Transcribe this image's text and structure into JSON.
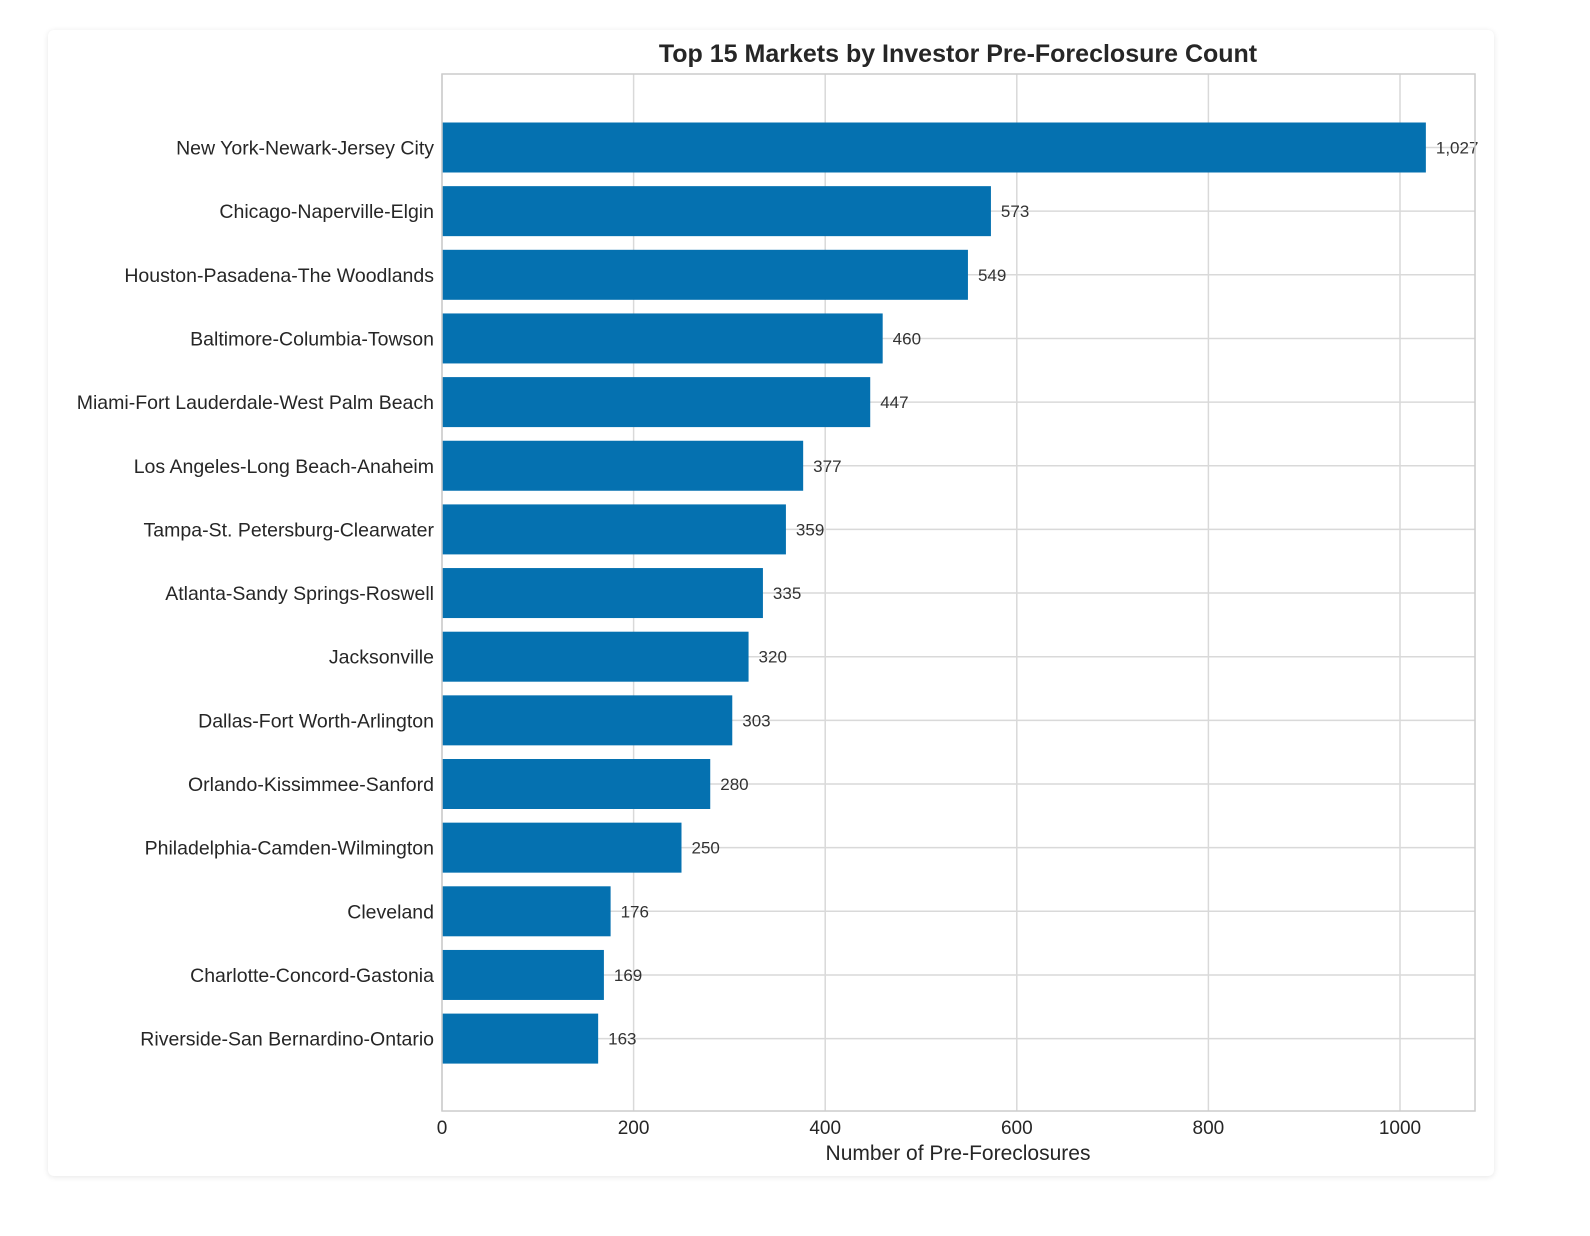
{
  "chart_data": {
    "type": "bar",
    "orientation": "horizontal",
    "title": "Top 15 Markets by Investor Pre-Foreclosure Count",
    "xlabel": "Number of Pre-Foreclosures",
    "ylabel": "",
    "categories": [
      "New York-Newark-Jersey City",
      "Chicago-Naperville-Elgin",
      "Houston-Pasadena-The Woodlands",
      "Baltimore-Columbia-Towson",
      "Miami-Fort Lauderdale-West Palm Beach",
      "Los Angeles-Long Beach-Anaheim",
      "Tampa-St. Petersburg-Clearwater",
      "Atlanta-Sandy Springs-Roswell",
      "Jacksonville",
      "Dallas-Fort Worth-Arlington",
      "Orlando-Kissimmee-Sanford",
      "Philadelphia-Camden-Wilmington",
      "Cleveland",
      "Charlotte-Concord-Gastonia",
      "Riverside-San Bernardino-Ontario"
    ],
    "values": [
      1027,
      573,
      549,
      460,
      447,
      377,
      359,
      335,
      320,
      303,
      280,
      250,
      176,
      169,
      163
    ],
    "data_labels": [
      "1,027",
      "573",
      "549",
      "460",
      "447",
      "377",
      "359",
      "335",
      "320",
      "303",
      "280",
      "250",
      "176",
      "169",
      "163"
    ],
    "xticks": [
      0,
      200,
      400,
      600,
      800,
      1000
    ],
    "xlim": [
      0,
      1078
    ],
    "grid": true,
    "bar_color": "#0571b0"
  }
}
